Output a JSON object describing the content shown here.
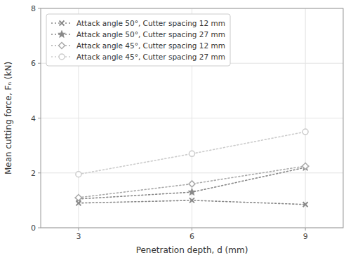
{
  "chart_data": {
    "type": "line",
    "x": [
      3,
      6,
      9
    ],
    "series": [
      {
        "name": "Attack angle 50°, Cutter spacing 12 mm",
        "color": "#888888",
        "marker": "x",
        "values": [
          0.9,
          1.0,
          0.85
        ]
      },
      {
        "name": "Attack angle 50°, Cutter spacing 27 mm",
        "color": "#888888",
        "marker": "star",
        "values": [
          1.05,
          1.3,
          2.2
        ]
      },
      {
        "name": "Attack angle 45°, Cutter spacing 12 mm",
        "color": "#aaaaaa",
        "marker": "diamond",
        "values": [
          1.1,
          1.6,
          2.25
        ]
      },
      {
        "name": "Attack angle 45°, Cutter spacing 27 mm",
        "color": "#cccccc",
        "marker": "circle",
        "values": [
          1.95,
          2.7,
          3.5
        ]
      }
    ],
    "xlabel": "Penetration depth, d (mm)",
    "ylabel": "Mean cutting force, Fₙ (kN)",
    "xlim": [
      2,
      10
    ],
    "ylim": [
      0,
      8
    ],
    "xticks": [
      3,
      6,
      9
    ],
    "yticks": [
      0,
      2,
      4,
      6,
      8
    ],
    "grid": true,
    "legend": "upper left",
    "line_style": "dotted"
  }
}
